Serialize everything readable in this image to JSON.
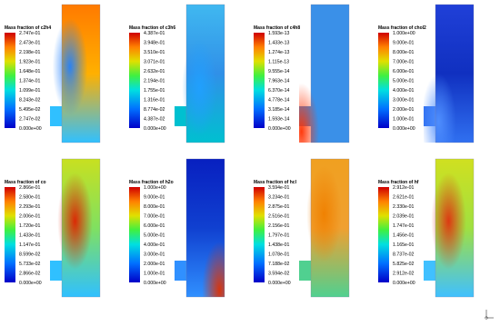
{
  "panels": [
    {
      "title": "Mass fraction of c2h4",
      "labels": [
        "2.747e-01",
        "2.473e-01",
        "2.198e-01",
        "1.923e-01",
        "1.648e-01",
        "1.374e-01",
        "1.099e-01",
        "8.243e-02",
        "5.495e-02",
        "2.747e-02",
        "0.000e+00"
      ]
    },
    {
      "title": "Mass fraction of c3h6",
      "labels": [
        "4.387e-01",
        "3.948e-01",
        "3.510e-01",
        "3.071e-01",
        "2.632e-01",
        "2.194e-01",
        "1.755e-01",
        "1.316e-01",
        "8.774e-02",
        "4.387e-02",
        "0.000e+00"
      ]
    },
    {
      "title": "Mass fraction of c4h8",
      "labels": [
        "1.593e-13",
        "1.433e-13",
        "1.274e-13",
        "1.115e-13",
        "9.555e-14",
        "7.963e-14",
        "6.370e-14",
        "4.778e-14",
        "3.185e-14",
        "1.593e-14",
        "0.000e+00"
      ]
    },
    {
      "title": "Mass fraction of chol2",
      "labels": [
        "1.000e+00",
        "9.000e-01",
        "8.000e-01",
        "7.000e-01",
        "6.000e-01",
        "5.000e-01",
        "4.000e-01",
        "3.000e-01",
        "2.000e-01",
        "1.000e-01",
        "0.000e+00"
      ]
    },
    {
      "title": "Mass fraction of co",
      "labels": [
        "2.866e-01",
        "2.580e-01",
        "2.293e-01",
        "2.006e-01",
        "1.720e-01",
        "1.433e-01",
        "1.147e-01",
        "8.599e-02",
        "5.733e-02",
        "2.866e-02",
        "0.000e+00"
      ]
    },
    {
      "title": "Mass fraction of h2o",
      "labels": [
        "1.000e+00",
        "9.000e-01",
        "8.000e-01",
        "7.000e-01",
        "6.000e-01",
        "5.000e-01",
        "4.000e-01",
        "3.000e-01",
        "2.000e-01",
        "1.000e-01",
        "0.000e+00"
      ]
    },
    {
      "title": "Mass fraction of hcl",
      "labels": [
        "3.594e-01",
        "3.234e-01",
        "2.875e-01",
        "2.516e-01",
        "2.156e-01",
        "1.797e-01",
        "1.438e-01",
        "1.078e-01",
        "7.188e-02",
        "3.594e-02",
        "0.000e+00"
      ]
    },
    {
      "title": "Mass fraction of hf",
      "labels": [
        "2.912e-01",
        "2.621e-01",
        "2.330e-01",
        "2.039e-01",
        "1.747e-01",
        "1.456e-01",
        "1.165e-01",
        "8.737e-02",
        "5.825e-02",
        "2.912e-02",
        "0.000e+00"
      ]
    }
  ]
}
